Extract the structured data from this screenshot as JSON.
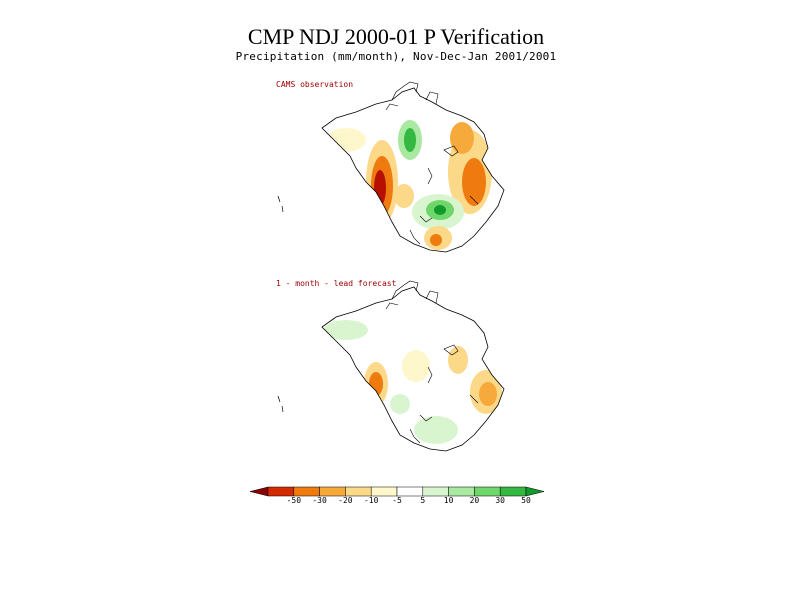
{
  "header": {
    "title": "CMP NDJ 2000-01 P Verification",
    "subtitle": "Precipitation (mm/month), Nov-Dec-Jan 2001/2001"
  },
  "panels": [
    {
      "label": "CAMS observation"
    },
    {
      "label": "1 - month - lead forecast"
    }
  ],
  "colorbar": {
    "ticks": [
      "-50",
      "-30",
      "-20",
      "-10",
      "-5",
      "5",
      "10",
      "20",
      "30",
      "50"
    ],
    "colors": [
      "#8b0000",
      "#d42a00",
      "#ee7a10",
      "#f6aa3c",
      "#fcd889",
      "#fff7cc",
      "#ffffff",
      "#d9f5d0",
      "#a9e8a0",
      "#6fd66b",
      "#34b842",
      "#119a2a"
    ]
  }
}
